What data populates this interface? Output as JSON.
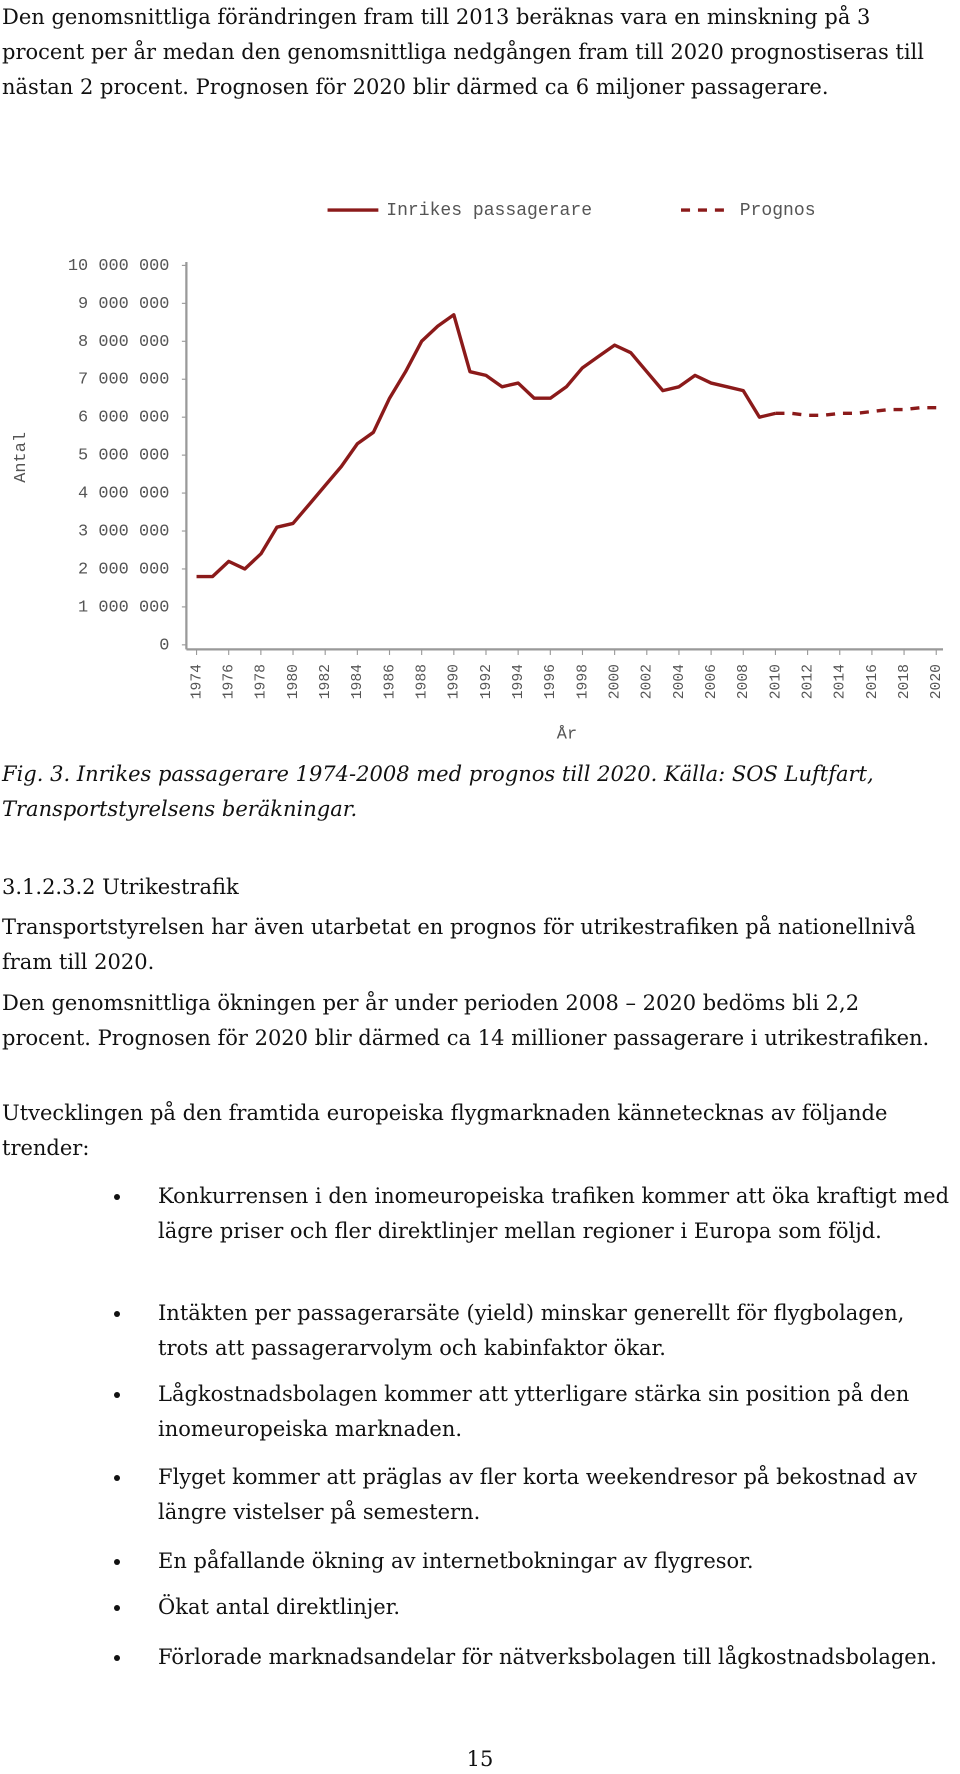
{
  "intro": "Den genomsnittliga förändringen fram till 2013 beräknas vara en minskning på 3 procent per år medan den genomsnittliga nedgången fram till 2020 prognostiseras till nästan 2 procent. Prognosen för 2020 blir därmed ca 6 miljoner passagerare.",
  "chart_data": {
    "type": "line",
    "x": [
      1974,
      1975,
      1976,
      1977,
      1978,
      1979,
      1980,
      1981,
      1982,
      1983,
      1984,
      1985,
      1986,
      1987,
      1988,
      1989,
      1990,
      1991,
      1992,
      1993,
      1994,
      1995,
      1996,
      1997,
      1998,
      1999,
      2000,
      2001,
      2002,
      2003,
      2004,
      2005,
      2006,
      2007,
      2008,
      2009,
      2010,
      2011,
      2012,
      2013,
      2014,
      2015,
      2016,
      2017,
      2018,
      2019,
      2020
    ],
    "series": [
      {
        "name": "Inrikes passagerare",
        "color": "#8b1a1a",
        "values": [
          1800000,
          1800000,
          2200000,
          2000000,
          2400000,
          3100000,
          3200000,
          3700000,
          4200000,
          4700000,
          5300000,
          5600000,
          6500000,
          7200000,
          8000000,
          8400000,
          8700000,
          7200000,
          7100000,
          6800000,
          6900000,
          6500000,
          6500000,
          6800000,
          7300000,
          7600000,
          7900000,
          7700000,
          7200000,
          6700000,
          6800000,
          7100000,
          6900000,
          6800000,
          6700000,
          6000000,
          6100000,
          null,
          null,
          null,
          null,
          null,
          null,
          null,
          null,
          null,
          null
        ]
      },
      {
        "name": "Prognos",
        "color": "#8b1a1a",
        "dashed": true,
        "values": [
          null,
          null,
          null,
          null,
          null,
          null,
          null,
          null,
          null,
          null,
          null,
          null,
          null,
          null,
          null,
          null,
          null,
          null,
          null,
          null,
          null,
          null,
          null,
          null,
          null,
          null,
          null,
          null,
          null,
          null,
          null,
          null,
          null,
          null,
          null,
          null,
          6100000,
          6100000,
          6050000,
          6050000,
          6100000,
          6100000,
          6150000,
          6200000,
          6200000,
          6250000,
          6250000
        ]
      }
    ],
    "xlim": [
      1974,
      2020
    ],
    "xticks": [
      1974,
      1976,
      1978,
      1980,
      1982,
      1984,
      1986,
      1988,
      1990,
      1992,
      1994,
      1996,
      1998,
      2000,
      2002,
      2004,
      2006,
      2008,
      2010,
      2012,
      2014,
      2016,
      2018,
      2020
    ],
    "ylim": [
      0,
      10000000
    ],
    "yticks": [
      0,
      {
        "value": 1000000,
        "label": "1 000 000"
      },
      {
        "value": 2000000,
        "label": "2 000 000"
      },
      {
        "value": 3000000,
        "label": "3 000 000"
      },
      {
        "value": 4000000,
        "label": "4 000 000"
      },
      {
        "value": 5000000,
        "label": "5 000 000"
      },
      {
        "value": 6000000,
        "label": "6 000 000"
      },
      {
        "value": 7000000,
        "label": "7 000 000"
      },
      {
        "value": 8000000,
        "label": "8 000 000"
      },
      {
        "value": 9000000,
        "label": "9 000 000"
      },
      {
        "value": 10000000,
        "label": "10 000 000"
      }
    ],
    "xlabel": "År",
    "ylabel": "Antal",
    "legend": "top",
    "grid": false
  },
  "caption": "Fig. 3. Inrikes passagerare 1974-2008 med prognos till 2020. Källa: SOS Luftfart, Transportstyrelsens beräkningar.",
  "heading": "3.1.2.3.2 Utrikestrafik",
  "paragraphs": [
    "Transportstyrelsen har även utarbetat en prognos för utrikestrafiken på nationellnivå fram till 2020.",
    "Den genomsnittliga ökningen per år under perioden 2008 – 2020 bedöms bli 2,2 procent. Prognosen för 2020 blir därmed ca 14 millioner passagerare i utrikestrafiken.",
    "Utvecklingen på den framtida europeiska flygmarknaden kännetecknas av följande trender:"
  ],
  "bullets": [
    "Konkurrensen i den inomeuropeiska trafiken kommer att öka kraftigt med lägre priser och fler direktlinjer mellan regioner i Europa som följd.",
    "Intäkten per passagerarsäte (yield) minskar generellt för flygbolagen, trots att passagerarvolym och kabinfaktor ökar.",
    "Lågkostnadsbolagen kommer att ytterligare stärka sin position på den inomeuropeiska marknaden.",
    "Flyget kommer att präglas av fler korta weekendresor på bekostnad av längre vistelser på semestern.",
    "En påfallande ökning av internetbokningar av flygresor.",
    "Ökat antal direktlinjer.",
    "Förlorade marknadsandelar för nätverksbolagen till lågkostnadsbolagen."
  ],
  "page_number": "15"
}
